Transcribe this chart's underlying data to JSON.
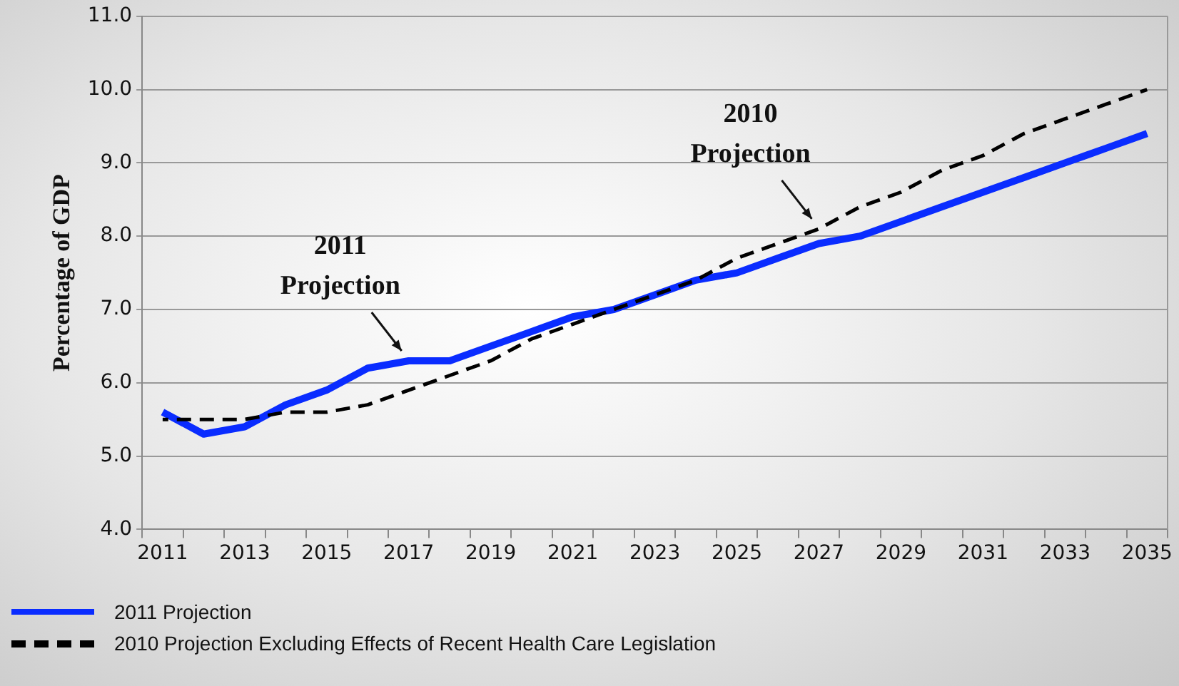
{
  "chart_data": {
    "type": "line",
    "ylabel": "Percentage of GDP",
    "categories": [
      "2011",
      null,
      "2013",
      null,
      "2015",
      null,
      "2017",
      null,
      "2019",
      null,
      "2021",
      null,
      "2023",
      null,
      "2025",
      null,
      "2027",
      null,
      "2029",
      null,
      "2031",
      null,
      "2033",
      null,
      "2035"
    ],
    "series": [
      {
        "name": "2011 Projection",
        "color": "#0a2cff",
        "line_style": "solid",
        "values": [
          5.6,
          5.3,
          5.4,
          5.7,
          5.9,
          6.2,
          6.3,
          6.3,
          6.5,
          6.7,
          6.9,
          7.0,
          7.2,
          7.4,
          7.5,
          7.7,
          7.9,
          8.0,
          8.2,
          8.4,
          8.6,
          8.8,
          9.0,
          9.2,
          9.4
        ]
      },
      {
        "name": "2010 Projection Excluding Effects of Recent Health Care Legislation",
        "color": "#000000",
        "line_style": "dashed",
        "values": [
          5.5,
          5.5,
          5.5,
          5.6,
          5.6,
          5.7,
          5.9,
          6.1,
          6.3,
          6.6,
          6.8,
          7.0,
          7.2,
          7.4,
          7.7,
          7.9,
          8.1,
          8.4,
          8.6,
          8.9,
          9.1,
          9.4,
          9.6,
          9.8,
          10.0
        ]
      }
    ],
    "ylim": [
      4,
      11
    ],
    "yticks": [
      {
        "value": 4,
        "label": "4.0"
      },
      {
        "value": 5,
        "label": "5.0"
      },
      {
        "value": 6,
        "label": "6.0"
      },
      {
        "value": 7,
        "label": "7.0"
      },
      {
        "value": 8,
        "label": "8.0"
      },
      {
        "value": 9,
        "label": "9.0"
      },
      {
        "value": 10,
        "label": "10.0"
      },
      {
        "value": 11,
        "label": "11.0"
      }
    ],
    "annotations": [
      {
        "text": "2011\nProjection",
        "x": "2017",
        "y": 6.3
      },
      {
        "text": "2010\nProjection",
        "x": "2027",
        "y": 8.1
      }
    ],
    "grid": "y",
    "legend": "bottom left",
    "marker": "none"
  }
}
